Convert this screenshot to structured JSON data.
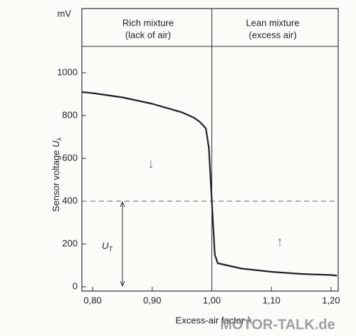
{
  "chart_data": {
    "type": "line",
    "header_left": [
      "Rich mixture",
      "(lack of air)"
    ],
    "header_right": [
      "Lean mixture",
      "(excess air)"
    ],
    "y_unit": "mV",
    "ylabel": "Sensor voltage",
    "ylabel_symbol": "U",
    "ylabel_sub": "λ",
    "xlabel": "Excess-air factor λ",
    "annotation_symbol": "U",
    "annotation_sub": "T",
    "watermark": "MOTOR-TALK.de",
    "threshold": 400,
    "divider": 1.0,
    "x": [
      0.782,
      0.8,
      0.85,
      0.9,
      0.95,
      0.97,
      0.98,
      0.99,
      0.995,
      1.0,
      1.005,
      1.01,
      1.05,
      1.1,
      1.15,
      1.2,
      1.21
    ],
    "series": [
      {
        "color": "#222222",
        "values": [
          910,
          905,
          885,
          855,
          815,
          790,
          770,
          740,
          650,
          400,
          150,
          110,
          85,
          70,
          60,
          55,
          52
        ]
      }
    ],
    "xlim": [
      0.782,
      1.212
    ],
    "ylim": [
      -20,
      1300
    ],
    "xticks": [
      {
        "value": 0.8,
        "label": "0,80"
      },
      {
        "value": 0.9,
        "label": "0,90"
      },
      {
        "value": 1.0,
        "label": "1,00"
      },
      {
        "value": 1.1,
        "label": "1,10"
      },
      {
        "value": 1.2,
        "label": "1,20"
      }
    ],
    "yticks": [
      0,
      200,
      400,
      600,
      800,
      1000
    ]
  }
}
